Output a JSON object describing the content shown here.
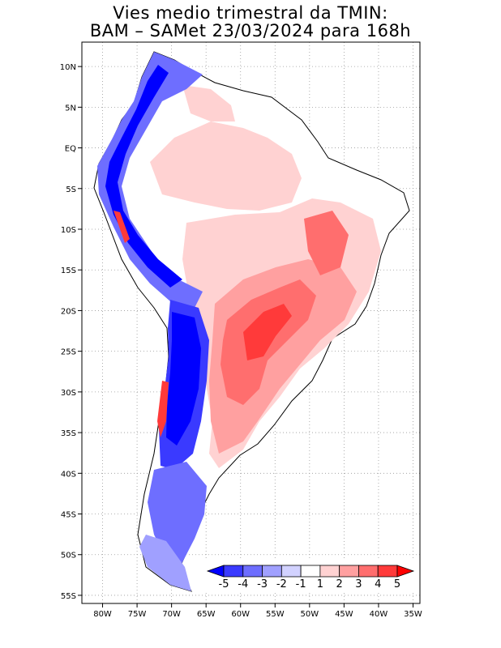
{
  "title": {
    "line1": "Vies medio trimestral da TMIN:",
    "line2": "BAM – SAMet 23/03/2024  para 168h"
  },
  "map": {
    "region": "South America",
    "lon_range": [
      -83,
      -34
    ],
    "lat_range": [
      -56,
      13
    ],
    "grid": "dotted, every 5 degrees",
    "lon_ticks": [
      "80W",
      "75W",
      "70W",
      "65W",
      "60W",
      "55W",
      "50W",
      "45W",
      "40W",
      "35W"
    ],
    "lat_ticks": [
      "10N",
      "5N",
      "EQ",
      "5S",
      "10S",
      "15S",
      "20S",
      "25S",
      "30S",
      "35S",
      "40S",
      "45S",
      "50S",
      "55S"
    ]
  },
  "colorbar": {
    "labels": [
      "-5",
      "-4",
      "-3",
      "-2",
      "-1",
      "1",
      "2",
      "3",
      "4",
      "5"
    ],
    "colors": [
      "#0000ff",
      "#3a3aff",
      "#6e6eff",
      "#a0a0ff",
      "#d2d2ff",
      "#ffffff",
      "#ffd2d2",
      "#ffa0a0",
      "#ff6e6e",
      "#ff3a3a",
      "#ff0000"
    ]
  }
}
